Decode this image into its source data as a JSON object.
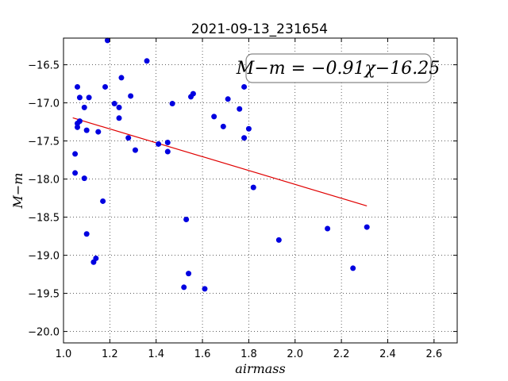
{
  "chart_data": {
    "type": "scatter",
    "title": "2021-09-13_231654",
    "xlabel": "airmass",
    "ylabel": "M−m",
    "xlim": [
      1.0,
      2.7
    ],
    "ylim": [
      -20.15,
      -16.15
    ],
    "y_inverted": true,
    "grid": true,
    "grid_style": "dotted",
    "x_ticks": [
      "1.0",
      "1.2",
      "1.4",
      "1.6",
      "1.8",
      "2.0",
      "2.2",
      "2.4",
      "2.6"
    ],
    "x_tick_values": [
      1.0,
      1.2,
      1.4,
      1.6,
      1.8,
      2.0,
      2.2,
      2.4,
      2.6
    ],
    "y_ticks": [
      "−16.5",
      "−17.0",
      "−17.5",
      "−18.0",
      "−18.5",
      "−19.0",
      "−19.5",
      "−20.0"
    ],
    "y_tick_values": [
      -16.5,
      -17.0,
      -17.5,
      -18.0,
      -18.5,
      -19.0,
      -19.5,
      -20.0
    ],
    "annotation": "M−m = −0.91χ−16.25",
    "annotation_location": "top-right",
    "fit": {
      "slope": -0.91,
      "intercept": -16.25,
      "x_range": [
        1.04,
        2.31
      ],
      "color": "#e00000"
    },
    "point_color": "#0000e0",
    "points": [
      {
        "x": 1.05,
        "y": -17.67
      },
      {
        "x": 1.05,
        "y": -17.92
      },
      {
        "x": 1.06,
        "y": -16.79
      },
      {
        "x": 1.06,
        "y": -17.27
      },
      {
        "x": 1.06,
        "y": -17.32
      },
      {
        "x": 1.07,
        "y": -16.93
      },
      {
        "x": 1.07,
        "y": -17.24
      },
      {
        "x": 1.09,
        "y": -17.06
      },
      {
        "x": 1.09,
        "y": -17.99
      },
      {
        "x": 1.1,
        "y": -17.36
      },
      {
        "x": 1.1,
        "y": -18.72
      },
      {
        "x": 1.11,
        "y": -16.93
      },
      {
        "x": 1.13,
        "y": -19.09
      },
      {
        "x": 1.14,
        "y": -19.04
      },
      {
        "x": 1.15,
        "y": -17.38
      },
      {
        "x": 1.17,
        "y": -18.29
      },
      {
        "x": 1.18,
        "y": -16.79
      },
      {
        "x": 1.19,
        "y": -16.18
      },
      {
        "x": 1.22,
        "y": -17.01
      },
      {
        "x": 1.24,
        "y": -17.2
      },
      {
        "x": 1.24,
        "y": -17.06
      },
      {
        "x": 1.25,
        "y": -16.67
      },
      {
        "x": 1.28,
        "y": -17.46
      },
      {
        "x": 1.29,
        "y": -16.91
      },
      {
        "x": 1.31,
        "y": -17.62
      },
      {
        "x": 1.36,
        "y": -16.45
      },
      {
        "x": 1.41,
        "y": -17.54
      },
      {
        "x": 1.45,
        "y": -17.52
      },
      {
        "x": 1.45,
        "y": -17.64
      },
      {
        "x": 1.47,
        "y": -17.01
      },
      {
        "x": 1.52,
        "y": -19.42
      },
      {
        "x": 1.53,
        "y": -18.53
      },
      {
        "x": 1.54,
        "y": -19.24
      },
      {
        "x": 1.55,
        "y": -16.92
      },
      {
        "x": 1.56,
        "y": -16.88
      },
      {
        "x": 1.61,
        "y": -19.44
      },
      {
        "x": 1.65,
        "y": -17.18
      },
      {
        "x": 1.69,
        "y": -17.31
      },
      {
        "x": 1.71,
        "y": -16.95
      },
      {
        "x": 1.76,
        "y": -17.08
      },
      {
        "x": 1.78,
        "y": -16.79
      },
      {
        "x": 1.78,
        "y": -17.46
      },
      {
        "x": 1.8,
        "y": -17.34
      },
      {
        "x": 1.82,
        "y": -18.11
      },
      {
        "x": 1.93,
        "y": -18.8
      },
      {
        "x": 2.14,
        "y": -18.65
      },
      {
        "x": 2.25,
        "y": -19.17
      },
      {
        "x": 2.31,
        "y": -18.63
      }
    ]
  }
}
